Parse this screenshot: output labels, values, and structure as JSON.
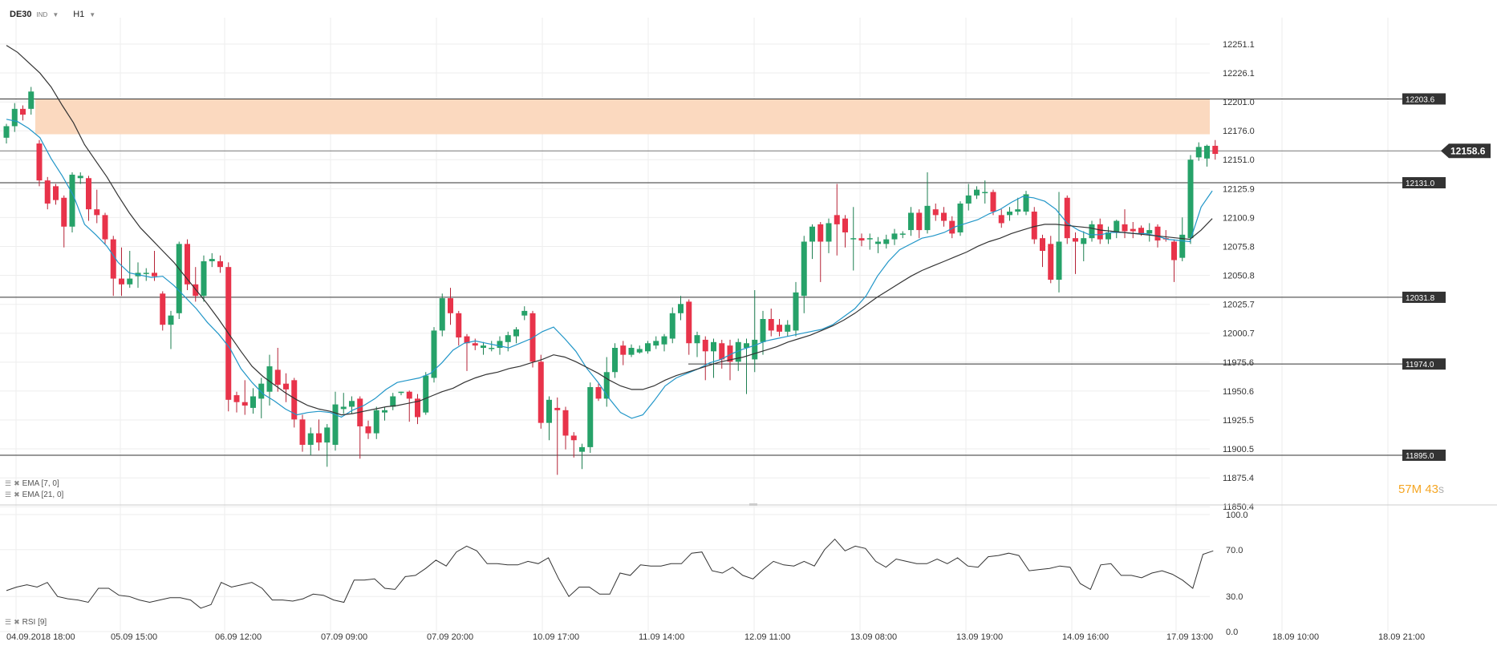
{
  "header": {
    "symbol": "DE30",
    "type_tag": "IND",
    "timeframe": "H1"
  },
  "indicators": {
    "ema7_label": "EMA [7, 0]",
    "ema21_label": "EMA [21, 0]",
    "rsi_label": "RSI [9]"
  },
  "countdown": {
    "minutes": "57",
    "minutes_unit": "M",
    "seconds": "43",
    "seconds_unit": "s"
  },
  "colors": {
    "bull": "#26a269",
    "bear": "#e8334a",
    "ema7": "#2196c8",
    "ema21": "#333333",
    "zone": "#fbd9bf",
    "level": "#333333",
    "price_tag": "#333333",
    "grid": "#eeeeee"
  },
  "chart_data": {
    "type": "candlestick",
    "instrument": "DE30",
    "timeframe": "H1",
    "y_ticks": [
      "12251.1",
      "12226.1",
      "12201.0",
      "12176.0",
      "12151.0",
      "12125.9",
      "12100.9",
      "12075.8",
      "12050.8",
      "12025.7",
      "12000.7",
      "11975.6",
      "11950.6",
      "11925.5",
      "11900.5",
      "11875.4",
      "11850.4"
    ],
    "ylim": [
      11845,
      12265
    ],
    "x_ticks": [
      "04.09.2018  18:00",
      "05.09  15:00",
      "06.09  12:00",
      "07.09  09:00",
      "07.09  20:00",
      "10.09  17:00",
      "11.09  14:00",
      "12.09  11:00",
      "13.09  08:00",
      "13.09  19:00",
      "14.09  16:00",
      "17.09  13:00",
      "18.09  10:00",
      "18.09  21:00"
    ],
    "last_price": "12158.6",
    "levels": [
      {
        "label": "12203.6",
        "value": 12203.6
      },
      {
        "label": "12131.0",
        "value": 12131.0
      },
      {
        "label": "12031.8",
        "value": 12031.8
      },
      {
        "label": "11974.0",
        "value": 11974.0
      },
      {
        "label": "11895.0",
        "value": 11895.0
      }
    ],
    "resistance_zone": [
      12173,
      12203.6
    ],
    "candles": [
      [
        12170,
        12180,
        12165,
        12182
      ],
      [
        12180,
        12195,
        12175,
        12200
      ],
      [
        12195,
        12190,
        12185,
        12198
      ],
      [
        12195,
        12210,
        12190,
        12214
      ],
      [
        12165,
        12133,
        12128,
        12168
      ],
      [
        12133,
        12113,
        12108,
        12136
      ],
      [
        12128,
        12116,
        12112,
        12130
      ],
      [
        12118,
        12093,
        12075,
        12120
      ],
      [
        12093,
        12138,
        12088,
        12140
      ],
      [
        12135,
        12137,
        12130,
        12140
      ],
      [
        12135,
        12108,
        12098,
        12137
      ],
      [
        12108,
        12103,
        12096,
        12125
      ],
      [
        12103,
        12082,
        12078,
        12105
      ],
      [
        12082,
        12048,
        12033,
        12085
      ],
      [
        12048,
        12043,
        12033,
        12075
      ],
      [
        12043,
        12048,
        12040,
        12072
      ],
      [
        12050,
        12053,
        12040,
        12062
      ],
      [
        12053,
        12053,
        12046,
        12057
      ],
      [
        12053,
        12050,
        12046,
        12072
      ],
      [
        12035,
        12008,
        12003,
        12037
      ],
      [
        12008,
        12016,
        11987,
        12020
      ],
      [
        12018,
        12078,
        12013,
        12080
      ],
      [
        12078,
        12043,
        12038,
        12082
      ],
      [
        12043,
        12033,
        12028,
        12058
      ],
      [
        12033,
        12063,
        12028,
        12068
      ],
      [
        12063,
        12065,
        12058,
        12070
      ],
      [
        12063,
        12058,
        12053,
        12068
      ],
      [
        12058,
        11943,
        11933,
        12062
      ],
      [
        11947,
        11941,
        11932,
        11950
      ],
      [
        11941,
        11938,
        11930,
        11960
      ],
      [
        11936,
        11946,
        11931,
        11953
      ],
      [
        11944,
        11957,
        11927,
        11962
      ],
      [
        11950,
        11972,
        11938,
        11982
      ],
      [
        11969,
        11956,
        11950,
        11988
      ],
      [
        11957,
        11952,
        11941,
        11966
      ],
      [
        11960,
        11926,
        11919,
        11962
      ],
      [
        11926,
        11904,
        11898,
        11930
      ],
      [
        11904,
        11914,
        11895,
        11919
      ],
      [
        11914,
        11906,
        11899,
        11926
      ],
      [
        11906,
        11919,
        11885,
        11922
      ],
      [
        11904,
        11939,
        11899,
        11950
      ],
      [
        11935,
        11937,
        11931,
        11949
      ],
      [
        11937,
        11942,
        11931,
        11946
      ],
      [
        11944,
        11920,
        11892,
        11946
      ],
      [
        11920,
        11914,
        11909,
        11925
      ],
      [
        11914,
        11934,
        11909,
        11937
      ],
      [
        11932,
        11934,
        11925,
        11937
      ],
      [
        11937,
        11946,
        11934,
        11949
      ],
      [
        11950,
        11950,
        11947,
        11950
      ],
      [
        11950,
        11944,
        11924,
        11951
      ],
      [
        11944,
        11928,
        11922,
        11948
      ],
      [
        11932,
        11964,
        11930,
        11967
      ],
      [
        11962,
        12003,
        11958,
        12006
      ],
      [
        12003,
        12031,
        11998,
        12035
      ],
      [
        12031,
        12018,
        12008,
        12040
      ],
      [
        12018,
        11997,
        11990,
        12020
      ],
      [
        11998,
        11992,
        11968,
        12000
      ],
      [
        11992,
        11990,
        11986,
        11996
      ],
      [
        11988,
        11990,
        11982,
        11993
      ],
      [
        11988,
        11988,
        11985,
        11994
      ],
      [
        11988,
        11994,
        11982,
        11998
      ],
      [
        11993,
        11999,
        11985,
        12002
      ],
      [
        11998,
        12004,
        11992,
        12006
      ],
      [
        12016,
        12020,
        12012,
        12024
      ],
      [
        12018,
        11976,
        11971,
        12020
      ],
      [
        11976,
        11923,
        11918,
        11982
      ],
      [
        11923,
        11943,
        11908,
        11946
      ],
      [
        11936,
        11934,
        11878,
        11945
      ],
      [
        11934,
        11912,
        11900,
        11937
      ],
      [
        11912,
        11908,
        11893,
        11915
      ],
      [
        11898,
        11902,
        11883,
        11905
      ],
      [
        11902,
        11954,
        11897,
        11958
      ],
      [
        11954,
        11944,
        11942,
        11957
      ],
      [
        11944,
        11967,
        11937,
        11980
      ],
      [
        11967,
        11988,
        11962,
        11992
      ],
      [
        11990,
        11982,
        11973,
        11994
      ],
      [
        11982,
        11988,
        11980,
        11991
      ],
      [
        11984,
        11987,
        11983,
        11990
      ],
      [
        11985,
        11992,
        11983,
        11994
      ],
      [
        11990,
        11994,
        11987,
        11998
      ],
      [
        11991,
        11998,
        11985,
        12000
      ],
      [
        11996,
        12018,
        11992,
        12023
      ],
      [
        12018,
        12026,
        12012,
        12033
      ],
      [
        12028,
        11992,
        11982,
        12030
      ],
      [
        11992,
        11999,
        11980,
        12002
      ],
      [
        11995,
        11985,
        11960,
        11998
      ],
      [
        11985,
        11993,
        11962,
        11996
      ],
      [
        11992,
        11978,
        11970,
        11995
      ],
      [
        11990,
        11976,
        11960,
        11995
      ],
      [
        11976,
        11993,
        11968,
        11996
      ],
      [
        11988,
        11992,
        11948,
        11996
      ],
      [
        11978,
        11995,
        11967,
        12038
      ],
      [
        11993,
        12013,
        11982,
        12020
      ],
      [
        12013,
        12003,
        11998,
        12022
      ],
      [
        12008,
        12002,
        11998,
        12013
      ],
      [
        12002,
        12008,
        11998,
        12012
      ],
      [
        12003,
        12036,
        11998,
        12045
      ],
      [
        12033,
        12080,
        12018,
        12085
      ],
      [
        12080,
        12093,
        12065,
        12095
      ],
      [
        12095,
        12080,
        12045,
        12097
      ],
      [
        12080,
        12096,
        12070,
        12100
      ],
      [
        12103,
        12095,
        12068,
        12130
      ],
      [
        12100,
        12088,
        12075,
        12103
      ],
      [
        12083,
        12083,
        12055,
        12110
      ],
      [
        12083,
        12081,
        12076,
        12087
      ],
      [
        12082,
        12083,
        12073,
        12087
      ],
      [
        12078,
        12080,
        12070,
        12084
      ],
      [
        12078,
        12082,
        12074,
        12086
      ],
      [
        12082,
        12087,
        12077,
        12091
      ],
      [
        12087,
        12087,
        12083,
        12089
      ],
      [
        12090,
        12105,
        12085,
        12110
      ],
      [
        12105,
        12090,
        12083,
        12108
      ],
      [
        12090,
        12111,
        12087,
        12140
      ],
      [
        12108,
        12103,
        12098,
        12113
      ],
      [
        12105,
        12098,
        12093,
        12110
      ],
      [
        12098,
        12087,
        12083,
        12102
      ],
      [
        12088,
        12113,
        12085,
        12115
      ],
      [
        12113,
        12120,
        12107,
        12130
      ],
      [
        12120,
        12125,
        12117,
        12128
      ],
      [
        12123,
        12123,
        12113,
        12133
      ],
      [
        12123,
        12106,
        12103,
        12125
      ],
      [
        12103,
        12096,
        12092,
        12108
      ],
      [
        12103,
        12106,
        12098,
        12110
      ],
      [
        12106,
        12108,
        12103,
        12118
      ],
      [
        12106,
        12121,
        12103,
        12124
      ],
      [
        12106,
        12082,
        12078,
        12110
      ],
      [
        12083,
        12072,
        12058,
        12086
      ],
      [
        12078,
        12047,
        12044,
        12085
      ],
      [
        12047,
        12080,
        12036,
        12123
      ],
      [
        12118,
        12083,
        12078,
        12120
      ],
      [
        12083,
        12080,
        12052,
        12088
      ],
      [
        12078,
        12083,
        12063,
        12089
      ],
      [
        12083,
        12095,
        12080,
        12098
      ],
      [
        12095,
        12082,
        12078,
        12100
      ],
      [
        12082,
        12088,
        12078,
        12093
      ],
      [
        12088,
        12098,
        12083,
        12099
      ],
      [
        12095,
        12089,
        12083,
        12108
      ],
      [
        12091,
        12089,
        12083,
        12097
      ],
      [
        12092,
        12087,
        12085,
        12094
      ],
      [
        12087,
        12090,
        12080,
        12096
      ],
      [
        12093,
        12081,
        12075,
        12095
      ],
      [
        12083,
        12082,
        12080,
        12090
      ],
      [
        12080,
        12064,
        12045,
        12082
      ],
      [
        12066,
        12086,
        12063,
        12101
      ],
      [
        12083,
        12151,
        12078,
        12155
      ],
      [
        12153,
        12162,
        12150,
        12166
      ],
      [
        12152,
        12163,
        12145,
        12164
      ],
      [
        12163,
        12156,
        12151,
        12168
      ]
    ],
    "ema7": [
      12186,
      12184,
      12178,
      12170,
      12152,
      12137,
      12120,
      12095,
      12086,
      12076,
      12062,
      12053,
      12051,
      12049,
      12050,
      12042,
      12032,
      12022,
      12010,
      12000,
      11988,
      11970,
      11958,
      11948,
      11942,
      11935,
      11930,
      11932,
      11933,
      11932,
      11928,
      11934,
      11938,
      11944,
      11952,
      11958,
      11960,
      11962,
      11966,
      11975,
      11986,
      11992,
      11994,
      11992,
      11990,
      11988,
      11992,
      11996,
      12002,
      12006,
      11996,
      11985,
      11970,
      11958,
      11944,
      11932,
      11927,
      11930,
      11942,
      11955,
      11962,
      11966,
      11970,
      11975,
      11978,
      11983,
      11987,
      11990,
      11994,
      11996,
      11998,
      12000,
      12002,
      12004,
      12008,
      12015,
      12022,
      12033,
      12050,
      12063,
      12073,
      12078,
      12083,
      12085,
      12088,
      12093,
      12096,
      12099,
      12104,
      12108,
      12114,
      12119,
      12118,
      12115,
      12108,
      12096,
      12090,
      12086,
      12086,
      12088,
      12088,
      12087,
      12087,
      12085,
      12082,
      12081,
      12080,
      12110,
      12124
    ],
    "ema21": [
      12250,
      12244,
      12235,
      12226,
      12214,
      12198,
      12183,
      12164,
      12150,
      12136,
      12120,
      12105,
      12092,
      12082,
      12072,
      12062,
      12050,
      12038,
      12026,
      12013,
      11999,
      11985,
      11972,
      11963,
      11956,
      11949,
      11943,
      11938,
      11935,
      11933,
      11930,
      11931,
      11933,
      11935,
      11937,
      11938,
      11940,
      11942,
      11946,
      11950,
      11953,
      11958,
      11962,
      11965,
      11967,
      11970,
      11972,
      11975,
      11978,
      11982,
      11980,
      11976,
      11971,
      11966,
      11960,
      11955,
      11952,
      11952,
      11955,
      11960,
      11964,
      11967,
      11970,
      11973,
      11976,
      11978,
      11980,
      11983,
      11986,
      11989,
      11993,
      11996,
      11999,
      12003,
      12007,
      12012,
      12018,
      12025,
      12032,
      12038,
      12044,
      12050,
      12055,
      12059,
      12063,
      12067,
      12071,
      12076,
      12080,
      12083,
      12087,
      12090,
      12093,
      12095,
      12095,
      12094,
      12093,
      12092,
      12090,
      12089,
      12088,
      12087,
      12086,
      12085,
      12084,
      12083,
      12082,
      12090,
      12100
    ],
    "rsi": {
      "label": "RSI [9]",
      "levels": [
        "100.0",
        "70.0",
        "30.0",
        "0.0"
      ],
      "ylim": [
        0,
        100
      ],
      "values": [
        35,
        38,
        40,
        38,
        42,
        30,
        28,
        27,
        25,
        37,
        37,
        31,
        30,
        27,
        25,
        27,
        29,
        29,
        27,
        20,
        23,
        42,
        38,
        40,
        42,
        37,
        27,
        27,
        26,
        28,
        32,
        31,
        27,
        25,
        44,
        44,
        45,
        37,
        36,
        47,
        48,
        54,
        61,
        56,
        68,
        73,
        69,
        58,
        58,
        57,
        57,
        60,
        58,
        63,
        45,
        30,
        38,
        38,
        32,
        32,
        50,
        48,
        57,
        56,
        56,
        58,
        58,
        67,
        68,
        52,
        50,
        55,
        48,
        45,
        53,
        60,
        57,
        56,
        60,
        56,
        70,
        79,
        69,
        73,
        71,
        60,
        55,
        62,
        60,
        58,
        58,
        62,
        58,
        63,
        56,
        55,
        64,
        65,
        67,
        65,
        52,
        53,
        54,
        56,
        55,
        41,
        36,
        57,
        58,
        48,
        48,
        46,
        50,
        52,
        49,
        44,
        37,
        66,
        69
      ]
    }
  }
}
